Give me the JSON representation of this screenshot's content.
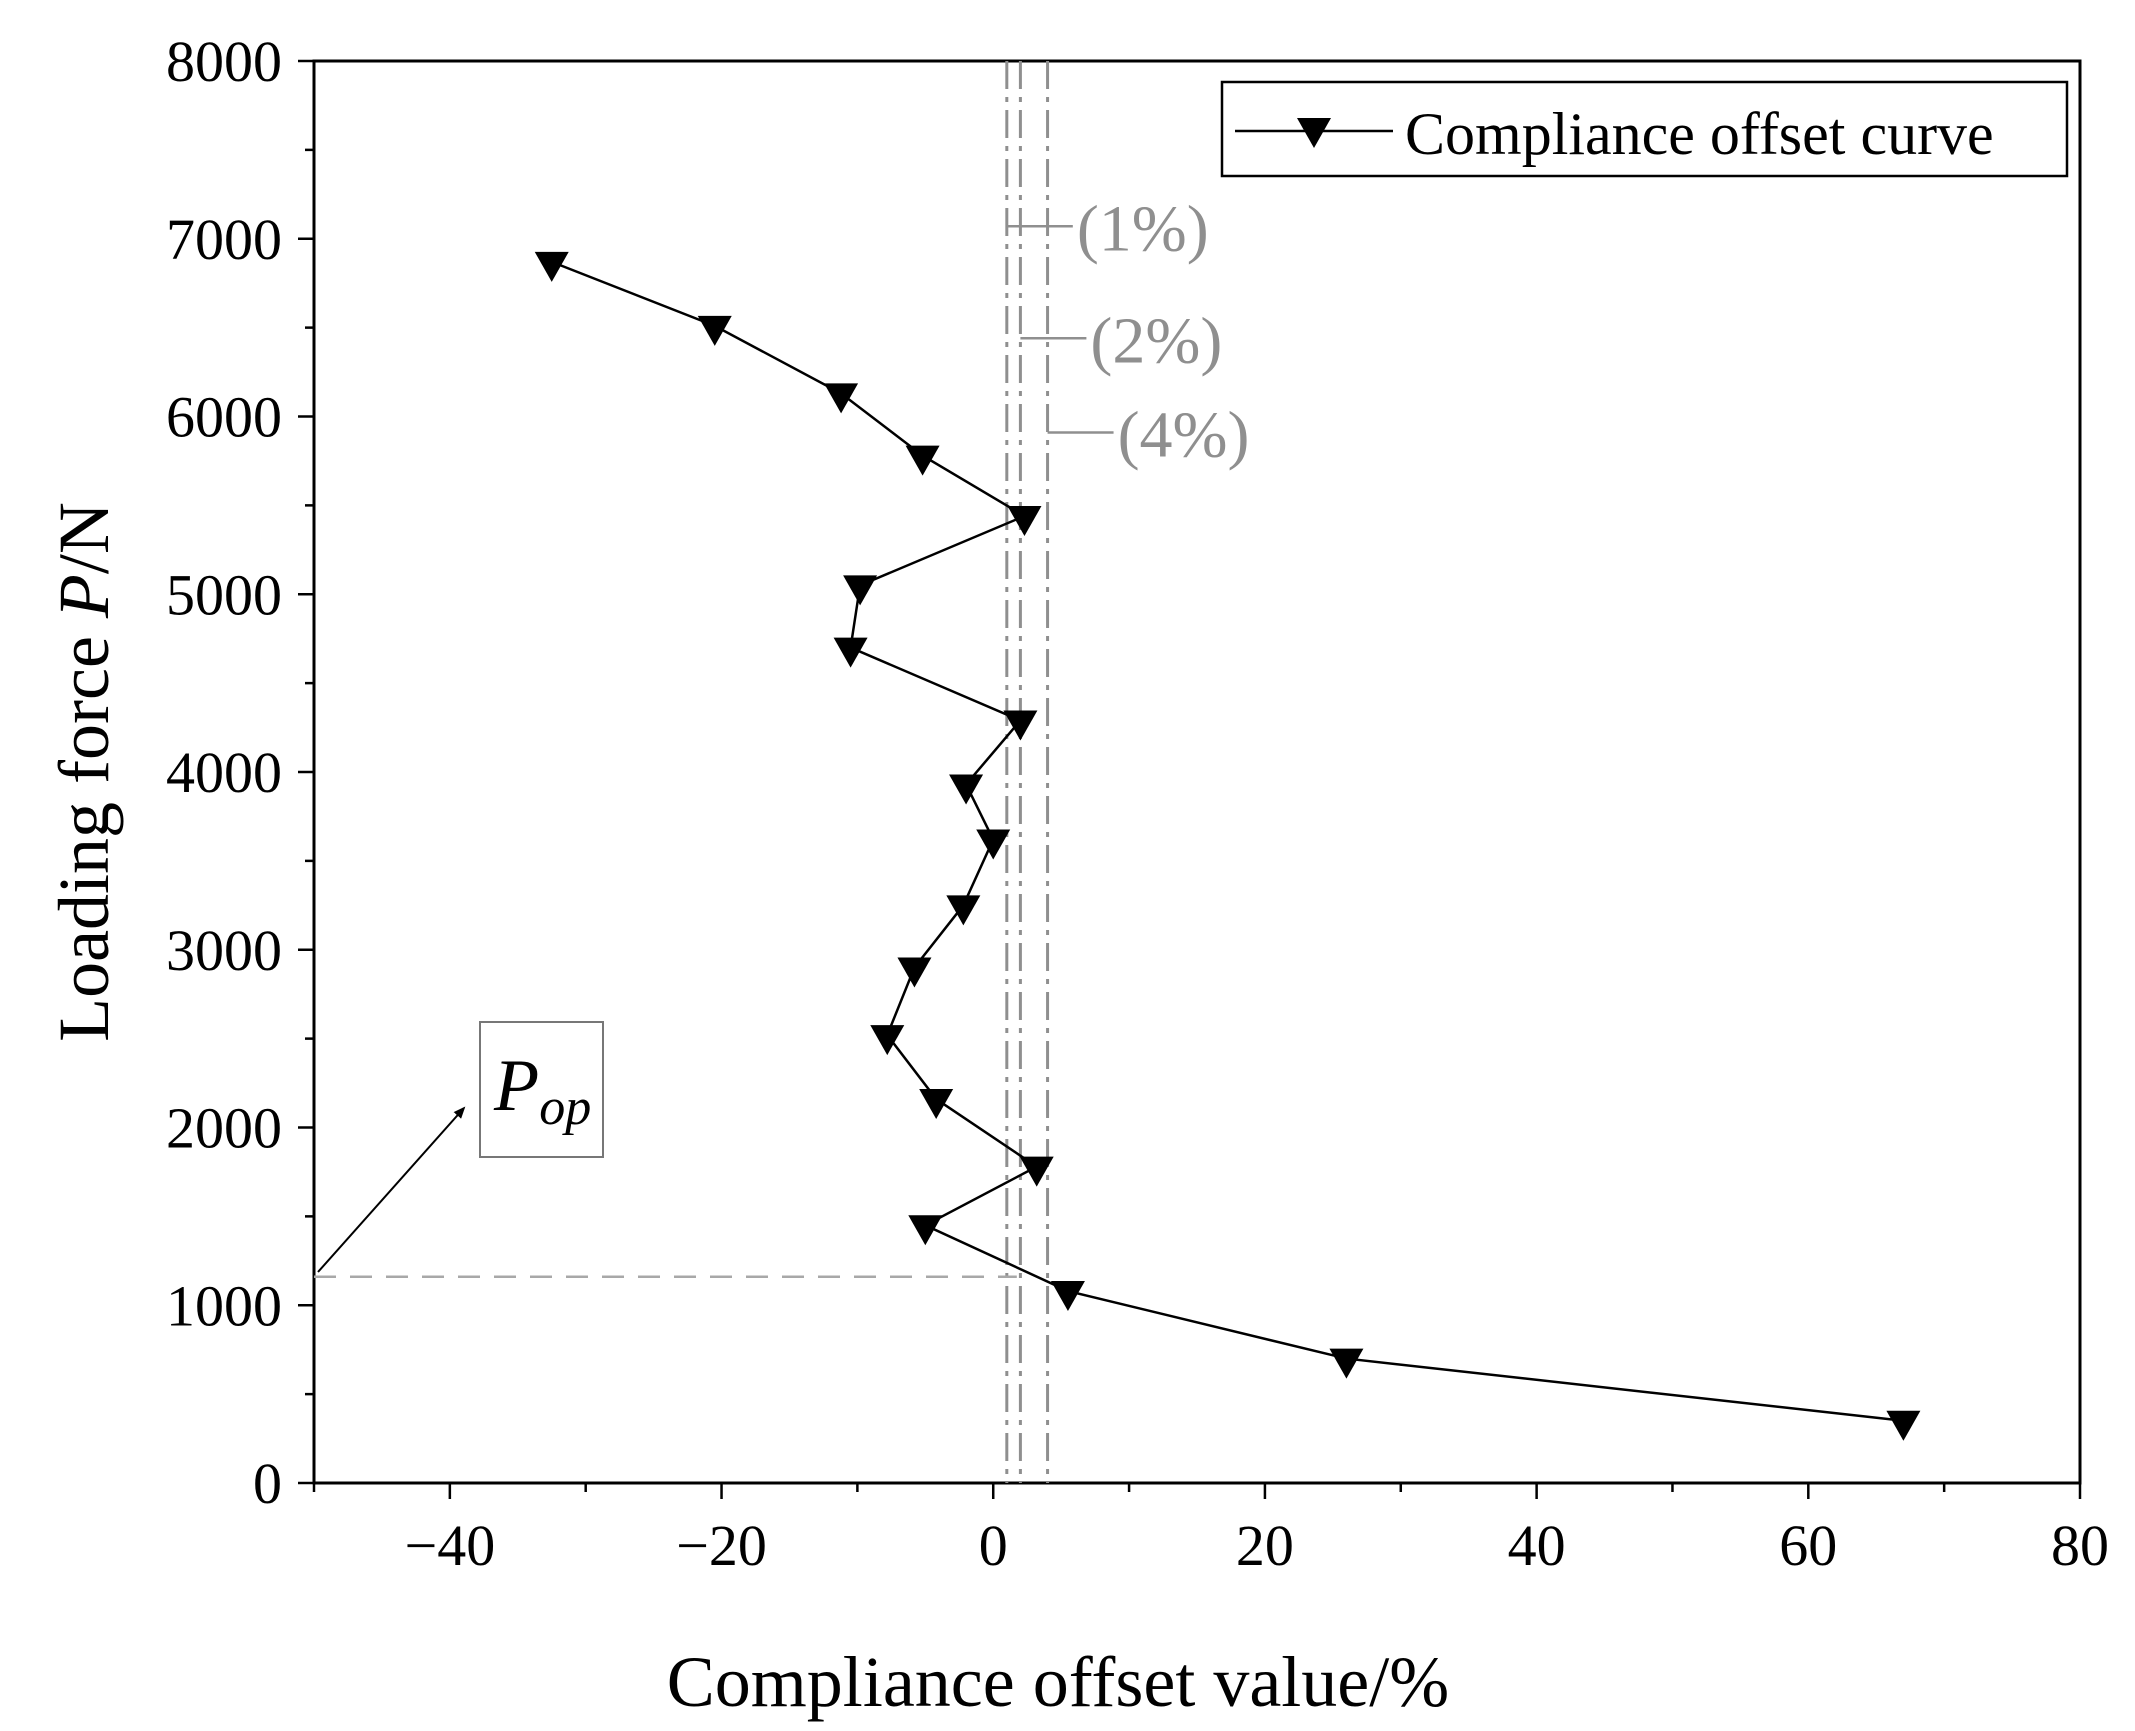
{
  "chart_data": {
    "type": "line",
    "xlabel": "Compliance offset value/%",
    "ylabel": {
      "prefix": "Loading force ",
      "var": "P",
      "suffix": "/N"
    },
    "xlim": [
      -50,
      80
    ],
    "ylim": [
      0,
      8000
    ],
    "xticks": [
      -40,
      -20,
      0,
      20,
      40,
      60,
      80
    ],
    "xtick_labels": [
      "−40",
      "−20",
      "0",
      "20",
      "40",
      "60",
      "80"
    ],
    "yticks": [
      0,
      1000,
      2000,
      3000,
      4000,
      5000,
      6000,
      7000,
      8000
    ],
    "ytick_labels": [
      "0",
      "1000",
      "2000",
      "3000",
      "4000",
      "5000",
      "6000",
      "7000",
      "8000"
    ],
    "x_minor_step": 10,
    "y_minor_step": 500,
    "series": [
      {
        "name": "Compliance offset curve",
        "marker": "down-triangle",
        "color": "#000000",
        "points": [
          [
            67,
            350
          ],
          [
            26,
            700
          ],
          [
            5.5,
            1080
          ],
          [
            -5,
            1450
          ],
          [
            3.2,
            1780
          ],
          [
            -4.2,
            2160
          ],
          [
            -7.8,
            2520
          ],
          [
            -5.8,
            2900
          ],
          [
            -2.2,
            3250
          ],
          [
            0,
            3620
          ],
          [
            -2,
            3930
          ],
          [
            2,
            4290
          ],
          [
            -10.5,
            4700
          ],
          [
            -9.8,
            5050
          ],
          [
            2.3,
            5440
          ],
          [
            -5.2,
            5780
          ],
          [
            -11.2,
            6130
          ],
          [
            -20.5,
            6510
          ],
          [
            -32.5,
            6870
          ]
        ]
      }
    ],
    "reference_lines": [
      {
        "x": 1,
        "label": "(1%)",
        "label_y": 7070
      },
      {
        "x": 2,
        "label": "(2%)",
        "label_y": 6440
      },
      {
        "x": 4,
        "label": "(4%)",
        "label_y": 5910
      }
    ],
    "reference_color": "#8f8f8f",
    "pop_line_y": 1160,
    "pop_label": {
      "main": "P",
      "sub": "op"
    },
    "legend_position": "top-right",
    "grid": false
  }
}
